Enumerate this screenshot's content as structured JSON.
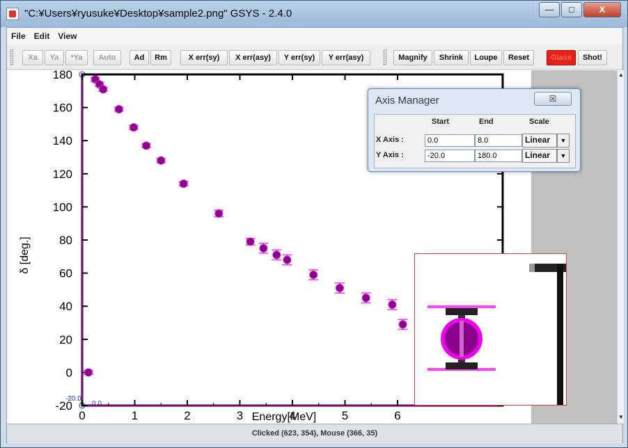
{
  "window": {
    "title": "\"C:¥Users¥ryusuke¥Desktop¥sample2.png\" GSYS - 2.4.0",
    "min_label": "—",
    "max_label": "□",
    "close_label": "X"
  },
  "menu": [
    "File",
    "Edit",
    "View"
  ],
  "toolbar": {
    "xa": "Xa",
    "ya": "Ya",
    "star_ya": "*Ya",
    "auto": "Auto",
    "ad": "Ad",
    "rm": "Rm",
    "xerr_sy": "X err(sy)",
    "xerr_asy": "X err(asy)",
    "yerr_sy": "Y err(sy)",
    "yerr_asy": "Y err(asy)",
    "magnify": "Magnify",
    "shrink": "Shrink",
    "loupe": "Loupe",
    "reset": "Reset",
    "glass": "Glass",
    "shot": "Shot!"
  },
  "status": "Clicked (623, 354), Mouse (366, 35)",
  "axis_manager": {
    "title": "Axis Manager",
    "close_label": "☒",
    "headers": {
      "start": "Start",
      "end": "End",
      "scale": "Scale"
    },
    "x_label": "X Axis :",
    "y_label": "Y Axis :",
    "x_start": "0.0",
    "x_end": "8.0",
    "x_scale": "Linear",
    "y_start": "-20.0",
    "y_end": "180.0",
    "y_scale": "Linear"
  },
  "plot_labels": {
    "origin_x": "0.0",
    "origin_y": "-20.0"
  },
  "chart_data": {
    "type": "scatter",
    "xlabel": "Energy[MeV]",
    "ylabel": "δ [deg.]",
    "xlim": [
      0,
      8
    ],
    "ylim": [
      -20,
      180
    ],
    "xticks": [
      "0",
      "1",
      "2",
      "3",
      "4",
      "5",
      "6"
    ],
    "yticks": [
      "-20",
      "0",
      "20",
      "40",
      "60",
      "80",
      "100",
      "120",
      "140",
      "160",
      "180"
    ],
    "points": [
      {
        "x": 0.12,
        "y": 0,
        "err": 0.5
      },
      {
        "x": 0.25,
        "y": 177,
        "err": 1
      },
      {
        "x": 0.33,
        "y": 174,
        "err": 1
      },
      {
        "x": 0.4,
        "y": 171,
        "err": 1
      },
      {
        "x": 0.7,
        "y": 159,
        "err": 1
      },
      {
        "x": 0.98,
        "y": 148,
        "err": 1
      },
      {
        "x": 1.22,
        "y": 137,
        "err": 1
      },
      {
        "x": 1.5,
        "y": 128,
        "err": 1
      },
      {
        "x": 1.93,
        "y": 114,
        "err": 1
      },
      {
        "x": 2.6,
        "y": 96,
        "err": 2
      },
      {
        "x": 3.2,
        "y": 79,
        "err": 2
      },
      {
        "x": 3.45,
        "y": 75,
        "err": 3
      },
      {
        "x": 3.7,
        "y": 71,
        "err": 3
      },
      {
        "x": 3.9,
        "y": 68,
        "err": 3
      },
      {
        "x": 4.4,
        "y": 59,
        "err": 3
      },
      {
        "x": 4.9,
        "y": 51,
        "err": 3
      },
      {
        "x": 5.4,
        "y": 45,
        "err": 3
      },
      {
        "x": 5.9,
        "y": 41,
        "err": 3
      },
      {
        "x": 6.1,
        "y": 29,
        "err": 3
      }
    ],
    "marker_color": "#8a008a",
    "errorbar_color": "#ff33ff",
    "frame_color": "#000000"
  }
}
